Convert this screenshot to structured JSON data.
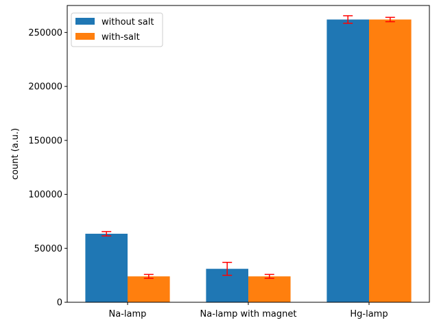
{
  "chart_data": {
    "type": "bar",
    "categories": [
      "Na-lamp",
      "Na-lamp with magnet",
      "Hg-lamp"
    ],
    "series": [
      {
        "name": "without salt",
        "color": "#1f77b4",
        "values": [
          63500,
          31000,
          262000
        ],
        "errors": [
          2000,
          6000,
          3500
        ]
      },
      {
        "name": "with-salt",
        "color": "#ff7f0e",
        "values": [
          24000,
          24000,
          262000
        ],
        "errors": [
          1800,
          1800,
          2000
        ]
      }
    ],
    "error_bar_color": "#ff0000",
    "xlabel": "",
    "ylabel": "count (a.u.)",
    "ylim": [
      0,
      275000
    ],
    "yticks": [
      0,
      50000,
      100000,
      150000,
      200000,
      250000
    ],
    "legend_position": "top-left",
    "grid": false
  }
}
